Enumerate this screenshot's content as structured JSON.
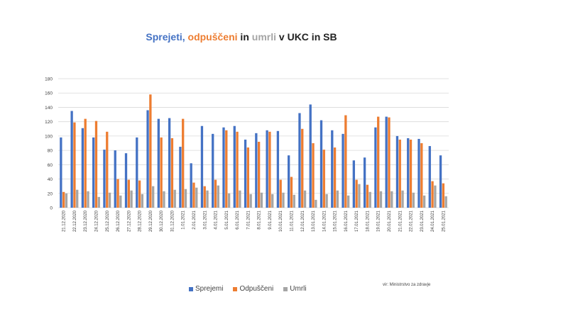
{
  "title": {
    "part1": "Sprejeti",
    "sep1": ", ",
    "part2": "odpuščeni",
    "sep2": " in ",
    "part3": "umrli",
    "rest": " v UKC in SB"
  },
  "source": "vir: Ministrstvo za zdravje",
  "colors": {
    "sprejemi": "#4472C4",
    "odpusceni": "#ED7D31",
    "umrli": "#A5A5A5",
    "grid": "#d9d9d9",
    "text": "#404040"
  },
  "chart_data": {
    "type": "bar",
    "ylim": [
      0,
      180
    ],
    "yticks": [
      0,
      20,
      40,
      60,
      80,
      100,
      120,
      140,
      160,
      180
    ],
    "grid": true,
    "legend_position": "bottom",
    "categories": [
      "21.12.2020",
      "22.12.2020",
      "23.12.2020",
      "24.12.2020",
      "25.12.2020",
      "26.12.2020",
      "27.12.2020",
      "28.12.2020",
      "29.12.2020",
      "30.12.2020",
      "31.12.2020",
      "1.01.2021",
      "2.01.2021",
      "3.01.2021",
      "4.01.2021",
      "5.01.2021",
      "6.01.2021",
      "7.01.2021",
      "8.01.2021",
      "9.01.2021",
      "10.01.2021",
      "11.01.2021",
      "12.01.2021",
      "13.01.2021",
      "14.01.2021",
      "15.01.2021",
      "16.01.2021",
      "17.01.2021",
      "18.01.2021",
      "19.01.2021",
      "20.01.2021",
      "21.01.2021",
      "22.01.2021",
      "23.01.2021",
      "24.01.2021",
      "25.01.2021"
    ],
    "series": [
      {
        "name": "Sprejemi",
        "key": "sprejemi",
        "values": [
          98,
          135,
          111,
          98,
          81,
          80,
          76,
          98,
          136,
          124,
          125,
          85,
          62,
          114,
          103,
          112,
          114,
          95,
          104,
          108,
          107,
          73,
          132,
          144,
          122,
          108,
          103,
          66,
          70,
          112,
          127,
          100,
          97,
          96,
          86,
          73
        ]
      },
      {
        "name": "Odpuščeni",
        "key": "odpusceni",
        "values": [
          22,
          119,
          124,
          121,
          106,
          40,
          39,
          38,
          158,
          98,
          97,
          124,
          35,
          30,
          39,
          108,
          106,
          84,
          92,
          106,
          39,
          43,
          110,
          90,
          81,
          84,
          129,
          39,
          32,
          127,
          126,
          95,
          95,
          90,
          37,
          34
        ]
      },
      {
        "name": "Umrli",
        "key": "umrli",
        "values": [
          20,
          25,
          23,
          15,
          21,
          17,
          24,
          19,
          30,
          23,
          25,
          26,
          28,
          24,
          31,
          20,
          24,
          19,
          21,
          19,
          21,
          18,
          24,
          11,
          19,
          24,
          17,
          33,
          22,
          23,
          23,
          24,
          21,
          17,
          31,
          16
        ]
      }
    ]
  }
}
